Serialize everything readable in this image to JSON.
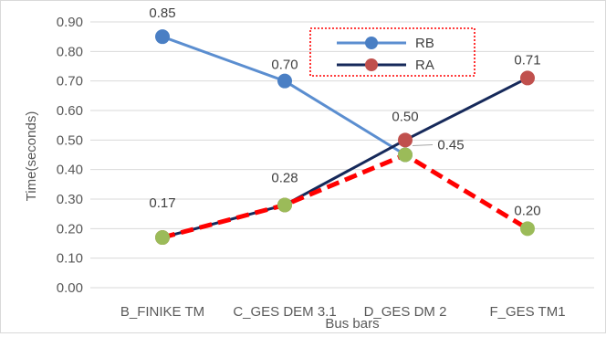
{
  "chart_data": {
    "type": "line",
    "title": "",
    "xlabel": "Bus bars",
    "ylabel": "Time(seconds)",
    "ylim": [
      0,
      0.9
    ],
    "ytick_step": 0.1,
    "ytick_labels": [
      "0.00",
      "0.10",
      "0.20",
      "0.30",
      "0.40",
      "0.50",
      "0.60",
      "0.70",
      "0.80",
      "0.90"
    ],
    "grid": true,
    "legend_position": "top-center",
    "categories": [
      "B_FINIKE TM",
      "C_GES DEM 3.1",
      "D_GES DM 2",
      "F_GES TM1"
    ],
    "series": [
      {
        "name": "RB",
        "line_color": "#5b8ed0",
        "marker_color": "#4a7fc4",
        "x": [
          "B_FINIKE TM",
          "C_GES DEM 3.1",
          "D_GES DM 2"
        ],
        "values": [
          0.85,
          0.7,
          0.45
        ],
        "labels": [
          "0.85",
          "0.70",
          null
        ]
      },
      {
        "name": "RA",
        "line_color": "#16295a",
        "marker_color": "#c0504d",
        "x": [
          "B_FINIKE TM",
          "C_GES DEM 3.1",
          "D_GES DM 2",
          "F_GES TM1"
        ],
        "values": [
          0.17,
          0.28,
          0.5,
          0.71
        ],
        "labels": [
          null,
          null,
          "0.50",
          "0.71"
        ]
      },
      {
        "name": "",
        "line_color": "#ff0000",
        "line_style": "dashed",
        "marker_color": "#9bbb59",
        "x": [
          "B_FINIKE TM",
          "C_GES DEM 3.1",
          "D_GES DM 2",
          "F_GES TM1"
        ],
        "values": [
          0.17,
          0.28,
          0.45,
          0.2
        ],
        "labels": [
          "0.17",
          "0.28",
          "0.45",
          "0.20"
        ]
      }
    ]
  }
}
